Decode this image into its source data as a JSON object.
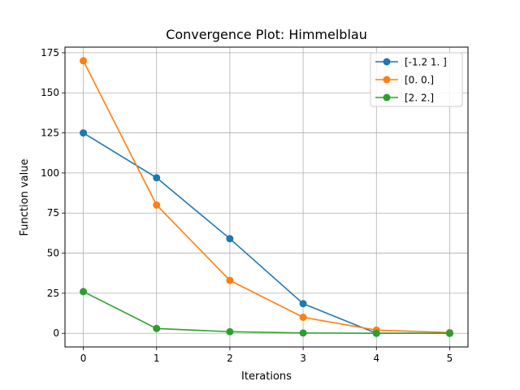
{
  "chart_data": {
    "type": "line",
    "title": "Convergence Plot: Himmelblau",
    "xlabel": "Iterations",
    "ylabel": "Function value",
    "x": [
      0,
      1,
      2,
      3,
      4,
      5
    ],
    "xlim": [
      -0.25,
      5.25
    ],
    "ylim": [
      -8.5,
      178.5
    ],
    "xticks": [
      "0",
      "1",
      "2",
      "3",
      "4",
      "5"
    ],
    "yticks": [
      "0",
      "25",
      "50",
      "75",
      "100",
      "125",
      "150",
      "175"
    ],
    "grid": true,
    "legend_position": "top-right",
    "series": [
      {
        "name": "[-1.2  1. ]",
        "color": "#1f77b4",
        "marker": "circle",
        "values": [
          125,
          97,
          59,
          18.5,
          0,
          0
        ]
      },
      {
        "name": "[0. 0.]",
        "color": "#ff7f0e",
        "marker": "circle",
        "values": [
          170,
          80,
          33,
          10,
          2,
          0.5
        ]
      },
      {
        "name": "[2. 2.]",
        "color": "#2ca02c",
        "marker": "circle",
        "values": [
          26,
          3,
          1,
          0.2,
          0,
          0
        ]
      }
    ]
  }
}
